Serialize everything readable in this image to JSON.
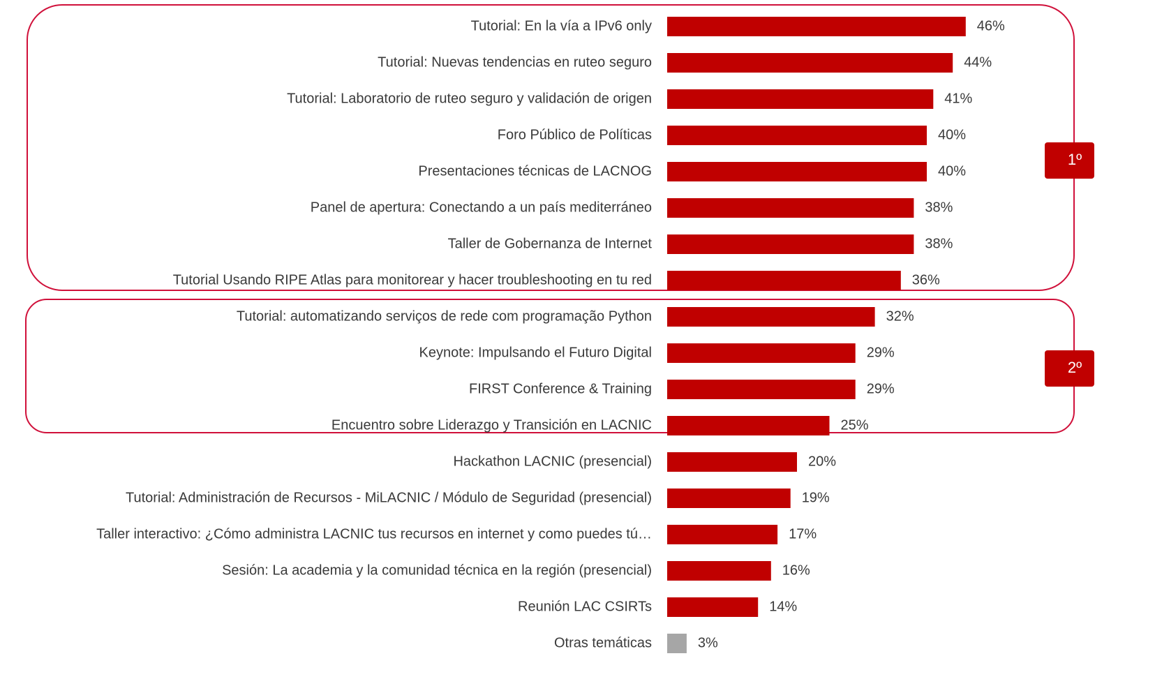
{
  "chart_data": {
    "type": "bar",
    "orientation": "horizontal",
    "categories": [
      "Tutorial: En la vía a IPv6 only",
      "Tutorial: Nuevas tendencias en ruteo seguro",
      "Tutorial: Laboratorio de ruteo seguro y validación de origen",
      "Foro Público de Políticas",
      "Presentaciones técnicas de LACNOG",
      "Panel de apertura: Conectando a un país mediterráneo",
      "Taller de Gobernanza de Internet",
      "Tutorial Usando RIPE Atlas para monitorear y hacer troubleshooting en tu red",
      "Tutorial: automatizando serviços de rede com programação Python",
      "Keynote: Impulsando el Futuro Digital",
      "FIRST Conference & Training",
      "Encuentro sobre Liderazgo y Transición en LACNIC",
      "Hackathon LACNIC (presencial)",
      "Tutorial: Administración de Recursos - MiLACNIC / Módulo de Seguridad (presencial)",
      "Taller interactivo: ¿Cómo administra LACNIC tus recursos en internet y como puedes tú…",
      "Sesión: La academia y la comunidad técnica en la región (presencial)",
      "Reunión LAC CSIRTs",
      "Otras temáticas"
    ],
    "values": [
      46,
      44,
      41,
      40,
      40,
      38,
      38,
      36,
      32,
      29,
      29,
      25,
      20,
      19,
      17,
      16,
      14,
      3
    ],
    "value_labels": [
      "46%",
      "44%",
      "41%",
      "40%",
      "40%",
      "38%",
      "38%",
      "36%",
      "32%",
      "29%",
      "29%",
      "25%",
      "20%",
      "19%",
      "17%",
      "16%",
      "14%",
      "3%"
    ],
    "colors": [
      "#c00000",
      "#c00000",
      "#c00000",
      "#c00000",
      "#c00000",
      "#c00000",
      "#c00000",
      "#c00000",
      "#c00000",
      "#c00000",
      "#c00000",
      "#c00000",
      "#c00000",
      "#c00000",
      "#c00000",
      "#c00000",
      "#c00000",
      "#a6a6a6"
    ],
    "annotations": [
      "1º",
      "2º"
    ]
  }
}
